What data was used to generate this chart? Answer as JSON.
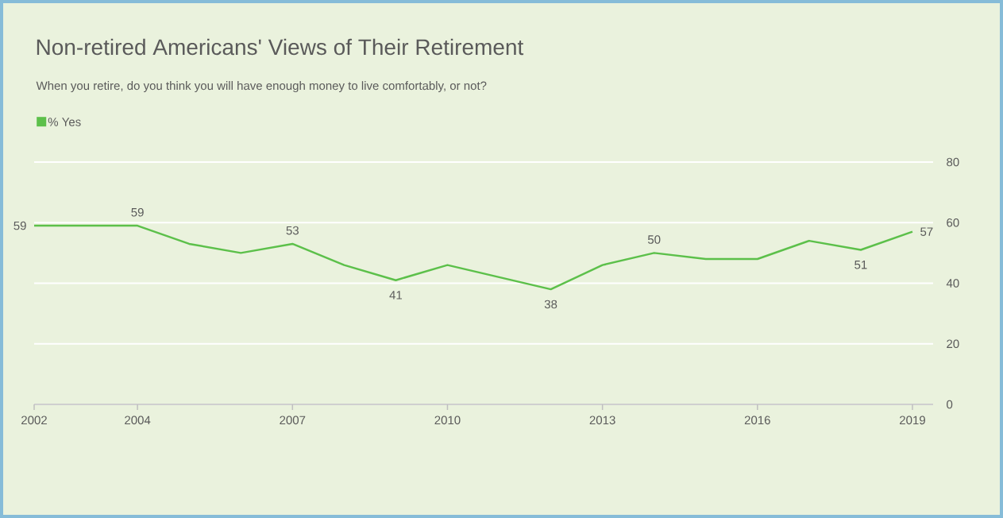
{
  "chart_data": {
    "type": "line",
    "title": "Non-retired Americans' Views of Their Retirement",
    "subtitle": "When you retire, do you think you will have enough money to live comfortably, or not?",
    "x": [
      2002,
      2004,
      2005,
      2006,
      2007,
      2008,
      2009,
      2010,
      2012,
      2013,
      2014,
      2015,
      2016,
      2017,
      2018,
      2019
    ],
    "series": [
      {
        "name": "% Yes",
        "color": "#5cc04a",
        "values": [
          59,
          59,
          53,
          50,
          53,
          46,
          41,
          46,
          38,
          46,
          50,
          48,
          48,
          54,
          51,
          57
        ],
        "value_labels": [
          "59",
          "59",
          null,
          null,
          "53",
          null,
          "41",
          null,
          "38",
          null,
          "50",
          null,
          null,
          null,
          "51",
          "57"
        ]
      }
    ],
    "xlim": [
      2002,
      2019.4
    ],
    "xticks": [
      2002,
      2004,
      2007,
      2010,
      2013,
      2016,
      2019
    ],
    "ylim": [
      0,
      80
    ],
    "yticks": [
      0,
      20,
      40,
      60,
      80
    ],
    "grid": "y",
    "legend": "top left",
    "marker": "none",
    "line_style": "solid"
  }
}
